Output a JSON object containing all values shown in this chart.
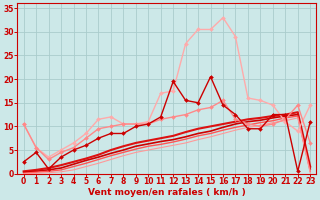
{
  "background_color": "#cce8e8",
  "grid_color": "#aacccc",
  "xlabel": "Vent moyen/en rafales ( km/h )",
  "xlim": [
    -0.5,
    23.5
  ],
  "ylim": [
    0,
    36
  ],
  "yticks": [
    0,
    5,
    10,
    15,
    20,
    25,
    30,
    35
  ],
  "xticks": [
    0,
    1,
    2,
    3,
    4,
    5,
    6,
    7,
    8,
    9,
    10,
    11,
    12,
    13,
    14,
    15,
    16,
    17,
    18,
    19,
    20,
    21,
    22,
    23
  ],
  "series": [
    {
      "x": [
        0,
        1,
        2,
        3,
        4,
        5,
        6,
        7,
        8,
        9,
        10,
        11,
        12,
        13,
        14,
        15,
        16,
        17,
        18,
        19,
        20,
        21,
        22,
        23
      ],
      "y": [
        10.5,
        5.5,
        3.5,
        5.0,
        6.5,
        8.5,
        11.5,
        12.0,
        10.5,
        10.5,
        11.0,
        17.0,
        17.5,
        27.5,
        30.5,
        30.5,
        33.0,
        29.0,
        16.0,
        15.5,
        14.5,
        11.0,
        9.0,
        14.5
      ],
      "color": "#ffaaaa",
      "lw": 1.0,
      "marker": "D",
      "ms": 2.0
    },
    {
      "x": [
        0,
        1,
        2,
        3,
        4,
        5,
        6,
        7,
        8,
        9,
        10,
        11,
        12,
        13,
        14,
        15,
        16,
        17,
        18,
        19,
        20,
        21,
        22,
        23
      ],
      "y": [
        10.5,
        5.5,
        3.0,
        4.5,
        5.5,
        7.5,
        9.5,
        10.0,
        10.5,
        10.5,
        10.5,
        11.5,
        12.0,
        12.5,
        13.5,
        14.0,
        15.5,
        11.5,
        10.5,
        10.0,
        10.5,
        11.5,
        14.5,
        6.5
      ],
      "color": "#ff8888",
      "lw": 1.0,
      "marker": "D",
      "ms": 2.0
    },
    {
      "x": [
        0,
        1,
        2,
        3,
        4,
        5,
        6,
        7,
        8,
        9,
        10,
        11,
        12,
        13,
        14,
        15,
        16,
        17,
        18,
        19,
        20,
        21,
        22,
        23
      ],
      "y": [
        2.5,
        4.5,
        1.0,
        3.5,
        5.0,
        6.0,
        7.5,
        8.5,
        8.5,
        10.0,
        10.5,
        12.0,
        19.5,
        15.5,
        15.0,
        20.5,
        14.5,
        12.5,
        9.5,
        9.5,
        12.5,
        12.5,
        0.5,
        11.0
      ],
      "color": "#cc0000",
      "lw": 1.0,
      "marker": "D",
      "ms": 2.0
    },
    {
      "x": [
        0,
        1,
        2,
        3,
        4,
        5,
        6,
        7,
        8,
        9,
        10,
        11,
        12,
        13,
        14,
        15,
        16,
        17,
        18,
        19,
        20,
        21,
        22,
        23
      ],
      "y": [
        0.5,
        0.8,
        1.2,
        1.8,
        2.5,
        3.2,
        4.0,
        5.0,
        5.8,
        6.5,
        7.0,
        7.5,
        8.0,
        8.8,
        9.5,
        10.0,
        10.5,
        11.0,
        11.5,
        11.8,
        12.2,
        12.5,
        13.0,
        1.5
      ],
      "color": "#dd1111",
      "lw": 1.5,
      "marker": null,
      "ms": 0
    },
    {
      "x": [
        0,
        1,
        2,
        3,
        4,
        5,
        6,
        7,
        8,
        9,
        10,
        11,
        12,
        13,
        14,
        15,
        16,
        17,
        18,
        19,
        20,
        21,
        22,
        23
      ],
      "y": [
        0.3,
        0.5,
        0.8,
        1.2,
        2.0,
        2.8,
        3.5,
        4.3,
        5.0,
        5.8,
        6.3,
        6.8,
        7.2,
        7.8,
        8.5,
        9.0,
        9.8,
        10.5,
        11.0,
        11.3,
        11.8,
        12.2,
        12.5,
        1.0
      ],
      "color": "#cc0000",
      "lw": 1.2,
      "marker": null,
      "ms": 0
    },
    {
      "x": [
        0,
        1,
        2,
        3,
        4,
        5,
        6,
        7,
        8,
        9,
        10,
        11,
        12,
        13,
        14,
        15,
        16,
        17,
        18,
        19,
        20,
        21,
        22,
        23
      ],
      "y": [
        0.1,
        0.3,
        0.5,
        0.8,
        1.5,
        2.2,
        3.0,
        3.8,
        4.5,
        5.2,
        5.8,
        6.2,
        6.7,
        7.3,
        8.0,
        8.5,
        9.2,
        9.8,
        10.3,
        10.8,
        11.2,
        11.8,
        12.2,
        0.5
      ],
      "color": "#ff5555",
      "lw": 1.0,
      "marker": null,
      "ms": 0
    },
    {
      "x": [
        0,
        1,
        2,
        3,
        4,
        5,
        6,
        7,
        8,
        9,
        10,
        11,
        12,
        13,
        14,
        15,
        16,
        17,
        18,
        19,
        20,
        21,
        22,
        23
      ],
      "y": [
        0.0,
        0.1,
        0.2,
        0.4,
        0.8,
        1.5,
        2.2,
        3.0,
        3.8,
        4.5,
        5.0,
        5.5,
        6.0,
        6.5,
        7.2,
        7.8,
        8.5,
        9.2,
        9.8,
        10.2,
        10.8,
        11.2,
        11.8,
        0.2
      ],
      "color": "#ff9999",
      "lw": 0.8,
      "marker": null,
      "ms": 0
    }
  ],
  "axis_color": "#cc0000",
  "tick_color": "#cc0000",
  "label_color": "#cc0000",
  "label_fontsize": 6.5,
  "tick_fontsize": 5.5
}
